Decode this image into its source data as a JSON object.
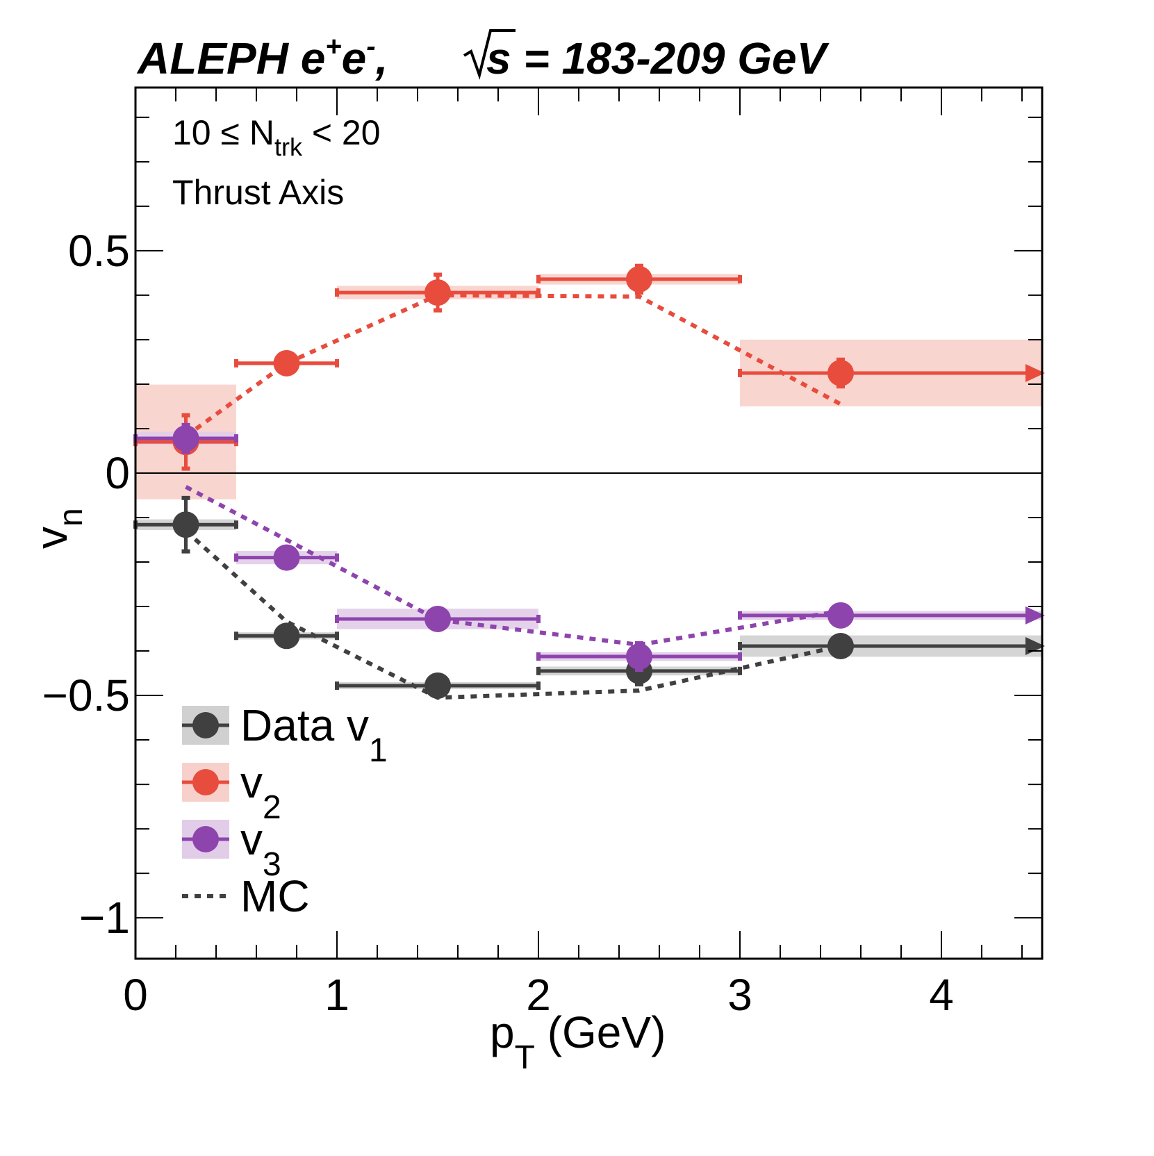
{
  "chart_data": {
    "type": "scatter",
    "title": {
      "main": "ALEPH e",
      "sup1": "+",
      "mid": "e",
      "sup2": "-",
      "rest": ",",
      "sqrt": "s = 183-209 GeV"
    },
    "annotations": {
      "ntrk_pre": "10 ≤ N",
      "ntrk_sub": "trk",
      "ntrk_post": " < 20",
      "axis": "Thrust Axis"
    },
    "xlabel": {
      "main": "p",
      "sub": "T",
      "rest": " (GeV)"
    },
    "ylabel": {
      "main": "v",
      "sub": "n"
    },
    "xlim": [
      0,
      4.5
    ],
    "ylim": [
      -1.092,
      0.867
    ],
    "x_ticks": [
      {
        "v": 0,
        "label": "0"
      },
      {
        "v": 1,
        "label": "1"
      },
      {
        "v": 2,
        "label": "2"
      },
      {
        "v": 3,
        "label": "3"
      },
      {
        "v": 4,
        "label": "4"
      }
    ],
    "y_ticks": [
      {
        "v": 0.5,
        "label": "0.5"
      },
      {
        "v": 0,
        "label": "0"
      },
      {
        "v": -0.5,
        "label": "−0.5"
      },
      {
        "v": -1,
        "label": "−1"
      }
    ],
    "x_minor_step": 0.2,
    "y_minor_step": 0.1,
    "bins": [
      [
        0,
        0.5
      ],
      [
        0.5,
        1
      ],
      [
        1,
        2
      ],
      [
        2,
        3
      ],
      [
        3,
        4.5
      ]
    ],
    "x": [
      0.25,
      0.75,
      1.5,
      2.5,
      3.5
    ],
    "series": [
      {
        "name": "Data v1",
        "key": "v1",
        "color": "#404040",
        "band": "#d0d0d0",
        "values": [
          -0.116,
          -0.366,
          -0.478,
          -0.445,
          -0.389
        ],
        "stat_err": [
          0.06,
          0.01,
          0.01,
          0.03,
          0.01
        ],
        "sys_err": [
          0.012,
          0.008,
          0.008,
          0.01,
          0.024
        ],
        "mc": [
          -0.13,
          -0.334,
          -0.505,
          -0.489,
          -0.389
        ]
      },
      {
        "name": "v2",
        "key": "v2",
        "color": "#e84c3d",
        "band": "#f8d0cb",
        "values": [
          0.07,
          0.247,
          0.406,
          0.436,
          0.225
        ],
        "stat_err": [
          0.06,
          0.01,
          0.04,
          0.03,
          0.03
        ],
        "sys_err": [
          0.129,
          0.005,
          0.015,
          0.012,
          0.075
        ],
        "mc": [
          0.083,
          0.247,
          0.4,
          0.397,
          0.155
        ]
      },
      {
        "name": "v3",
        "key": "v3",
        "color": "#8e44ad",
        "band": "#e1cde8",
        "values": [
          0.078,
          -0.19,
          -0.328,
          -0.4125,
          -0.32
        ],
        "stat_err": [
          0.03,
          0.01,
          0.01,
          0.03,
          0.02
        ],
        "sys_err": [
          0.015,
          0.015,
          0.023,
          0.01,
          0.01
        ],
        "mc": [
          -0.031,
          -0.15,
          -0.33,
          -0.386,
          -0.31
        ]
      }
    ],
    "legend": {
      "position": "bottom-left",
      "entries": [
        {
          "main": "Data v",
          "sub": "1"
        },
        {
          "main": "v",
          "sub": "2"
        },
        {
          "main": "v",
          "sub": "3"
        },
        {
          "main": "MC",
          "sub": ""
        }
      ]
    },
    "zero_line": true
  }
}
